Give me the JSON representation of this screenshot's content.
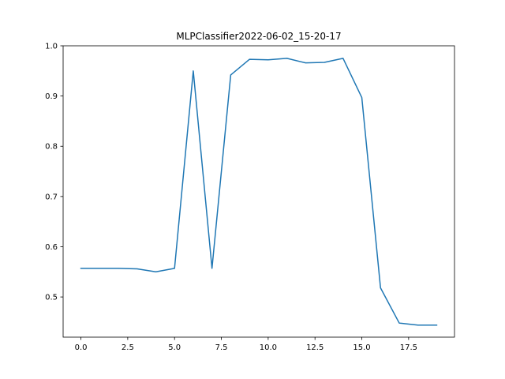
{
  "chart_data": {
    "type": "line",
    "title": "MLPClassifier2022-06-02_15-20-17",
    "xlabel": "",
    "ylabel": "",
    "xlim": [
      -0.95,
      19.95
    ],
    "ylim": [
      0.42,
      1.0
    ],
    "x_ticks": [
      0,
      2.5,
      5,
      7.5,
      10,
      12.5,
      15,
      17.5
    ],
    "x_tick_labels": [
      "0.0",
      "2.5",
      "5.0",
      "7.5",
      "10.0",
      "12.5",
      "15.0",
      "17.5"
    ],
    "y_ticks": [
      0.5,
      0.6,
      0.7,
      0.8,
      0.9,
      1.0
    ],
    "y_tick_labels": [
      "0.5",
      "0.6",
      "0.7",
      "0.8",
      "0.9",
      "1.0"
    ],
    "grid": false,
    "series": [
      {
        "color": "#1f77b4",
        "x": [
          0,
          1,
          2,
          3,
          4,
          5,
          6,
          7,
          8,
          9,
          10,
          11,
          12,
          13,
          14,
          15,
          16,
          17,
          18,
          19
        ],
        "values": [
          0.557,
          0.557,
          0.557,
          0.556,
          0.55,
          0.557,
          0.95,
          0.557,
          0.942,
          0.973,
          0.972,
          0.975,
          0.966,
          0.967,
          0.975,
          0.897,
          0.518,
          0.448,
          0.444,
          0.444
        ]
      }
    ]
  }
}
